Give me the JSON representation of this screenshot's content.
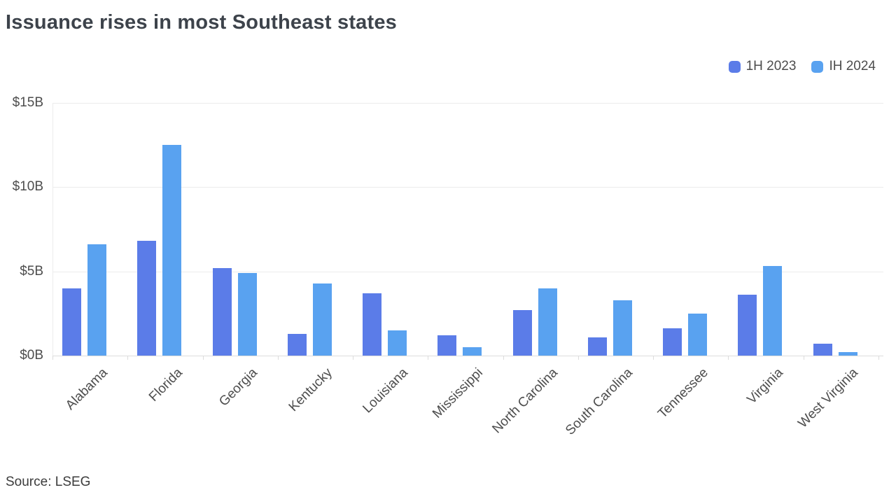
{
  "title": "Issuance rises in most Southeast states",
  "source": "Source: LSEG",
  "colors": {
    "series1": "#5b7ce8",
    "series2": "#59a2f0",
    "axis_text": "#4d4d4d",
    "title_text": "#3d434b",
    "gridline": "#ececec"
  },
  "legend": {
    "items": [
      {
        "label": "1H 2023",
        "color": "#5b7ce8"
      },
      {
        "label": "IH 2024",
        "color": "#59a2f0"
      }
    ],
    "position": "top-right"
  },
  "chart_data": {
    "type": "bar",
    "title": "Issuance rises in most Southeast states",
    "categories": [
      "Alabama",
      "Florida",
      "Georgia",
      "Kentucky",
      "Louisiana",
      "Mississippi",
      "North Carolina",
      "South Carolina",
      "Tennessee",
      "Virginia",
      "West Virginia"
    ],
    "series": [
      {
        "name": "1H 2023",
        "color": "#5b7ce8",
        "values": [
          4.0,
          6.8,
          5.2,
          1.3,
          3.7,
          1.2,
          2.7,
          1.1,
          1.6,
          3.6,
          0.7
        ]
      },
      {
        "name": "IH 2024",
        "color": "#59a2f0",
        "values": [
          6.6,
          12.5,
          4.9,
          4.3,
          1.5,
          0.5,
          4.0,
          3.3,
          2.5,
          5.3,
          0.2
        ]
      }
    ],
    "xlabel": "",
    "ylabel": "",
    "unit": "billions of dollars",
    "ylim": [
      0,
      15
    ],
    "y_ticks": [
      {
        "label": "$0B",
        "value": 0
      },
      {
        "label": "$5B",
        "value": 5
      },
      {
        "label": "$10B",
        "value": 10
      },
      {
        "label": "$15B",
        "value": 15
      }
    ],
    "grid": "horizontal",
    "legend_position": "top-right",
    "x_label_rotation_deg": -45,
    "source": "Source: LSEG"
  }
}
